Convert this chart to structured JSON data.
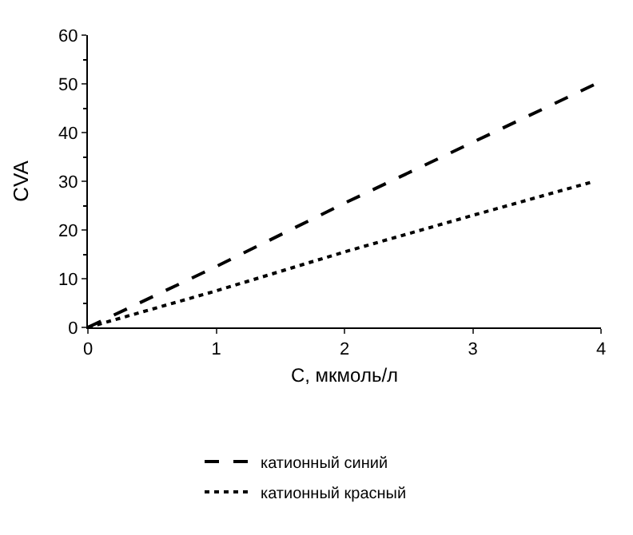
{
  "chart_data": {
    "type": "line",
    "xlabel": "C, мкмоль/л",
    "ylabel": "CVA",
    "xlim": [
      0,
      4
    ],
    "xticks": [
      0,
      1,
      2,
      3,
      4
    ],
    "ylim": [
      0,
      60
    ],
    "yticks": [
      0,
      10,
      20,
      30,
      40,
      50,
      60
    ],
    "legend": "bottom",
    "marker": "none",
    "series": [
      {
        "name": "катионный синий",
        "color": "#000000",
        "line_style": "dashed",
        "x": [
          0,
          1,
          2,
          3,
          4
        ],
        "values": [
          0,
          12.5,
          25.5,
          38,
          50.5
        ]
      },
      {
        "name": "катионный красный",
        "color": "#000000",
        "line_style": "dotted",
        "x": [
          0,
          1,
          2,
          3,
          3.95
        ],
        "values": [
          0,
          7.5,
          15.5,
          23,
          30
        ]
      }
    ]
  }
}
